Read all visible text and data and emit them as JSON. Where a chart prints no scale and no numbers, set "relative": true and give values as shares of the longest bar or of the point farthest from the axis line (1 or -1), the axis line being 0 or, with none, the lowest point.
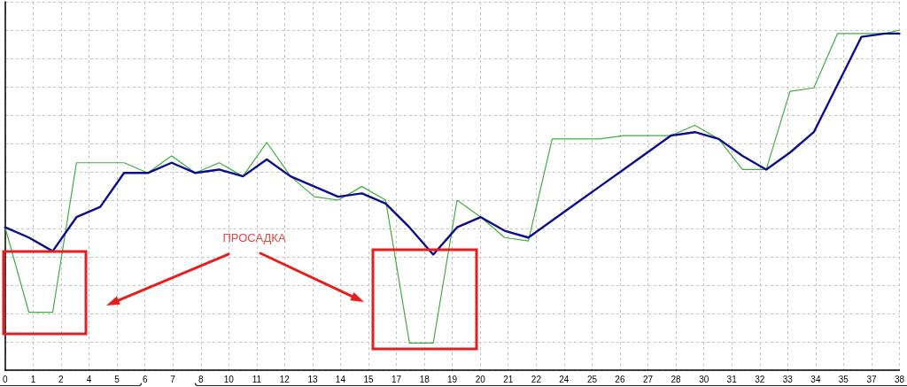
{
  "chart_data": {
    "type": "line",
    "relative": true,
    "x": [
      0.14,
      1.14,
      2.14,
      3.14,
      4.14,
      5.14,
      6.14,
      7.14,
      8.14,
      9.14,
      10.14,
      11.14,
      12.14,
      13.14,
      14.14,
      15.14,
      16.14,
      17.14,
      18.14,
      19.14,
      20.14,
      21.14,
      22.14,
      23.14,
      24.14,
      25.14,
      26.14,
      27.14,
      28.14,
      29.14,
      30.14,
      31.14,
      32.14,
      33.14,
      34.14,
      35.14,
      36.14,
      37.14,
      37.74
    ],
    "xlim": [
      0.14,
      37.74
    ],
    "xticks": [
      {
        "value": 0.14,
        "label": "0"
      },
      {
        "value": 1.32,
        "label": "1"
      },
      {
        "value": 2.49,
        "label": "2"
      },
      {
        "value": 3.67,
        "label": "4"
      },
      {
        "value": 4.84,
        "label": "5"
      },
      {
        "value": 6.02,
        "label": "6"
      },
      {
        "value": 7.19,
        "label": "7"
      },
      {
        "value": 8.37,
        "label": "8"
      },
      {
        "value": 9.54,
        "label": "10"
      },
      {
        "value": 10.72,
        "label": "11"
      },
      {
        "value": 11.89,
        "label": "12"
      },
      {
        "value": 13.07,
        "label": "13"
      },
      {
        "value": 14.24,
        "label": "14"
      },
      {
        "value": 15.42,
        "label": "15"
      },
      {
        "value": 16.59,
        "label": "17"
      },
      {
        "value": 17.77,
        "label": "18"
      },
      {
        "value": 18.94,
        "label": "19"
      },
      {
        "value": 20.12,
        "label": "20"
      },
      {
        "value": 21.29,
        "label": "21"
      },
      {
        "value": 22.47,
        "label": "22"
      },
      {
        "value": 23.64,
        "label": "24"
      },
      {
        "value": 24.82,
        "label": "25"
      },
      {
        "value": 25.99,
        "label": "26"
      },
      {
        "value": 27.17,
        "label": "27"
      },
      {
        "value": 28.34,
        "label": "28"
      },
      {
        "value": 29.52,
        "label": "30"
      },
      {
        "value": 30.69,
        "label": "31"
      },
      {
        "value": 31.87,
        "label": "32"
      },
      {
        "value": 33.04,
        "label": "33"
      },
      {
        "value": 34.22,
        "label": "34"
      },
      {
        "value": 35.39,
        "label": "35"
      },
      {
        "value": 36.57,
        "label": "37"
      },
      {
        "value": 37.74,
        "label": "38"
      }
    ],
    "series": [
      {
        "color": "#41ad41",
        "values": [
          0.42,
          0.17,
          0.17,
          0.61,
          0.61,
          0.61,
          0.58,
          0.63,
          0.58,
          0.61,
          0.57,
          0.67,
          0.57,
          0.51,
          0.5,
          0.54,
          0.5,
          0.08,
          0.08,
          0.5,
          0.45,
          0.39,
          0.38,
          0.68,
          0.68,
          0.68,
          0.69,
          0.69,
          0.69,
          0.72,
          0.68,
          0.59,
          0.59,
          0.82,
          0.83,
          0.99,
          0.99,
          0.99,
          1
        ]
      },
      {
        "color": "#0c0c8c",
        "values": [
          0.42,
          0.39,
          0.35,
          0.45,
          0.48,
          0.58,
          0.58,
          0.61,
          0.58,
          0.59,
          0.57,
          0.62,
          0.57,
          0.54,
          0.51,
          0.52,
          0.49,
          0.42,
          0.34,
          0.42,
          0.45,
          0.41,
          0.39,
          0.44,
          0.49,
          0.54,
          0.59,
          0.64,
          0.69,
          0.7,
          0.68,
          0.63,
          0.59,
          0.64,
          0.7,
          0.84,
          0.98,
          0.99,
          0.99
        ]
      }
    ],
    "grid": true,
    "marker": "none",
    "line_style": "solid",
    "annotations": [
      "ПРОСАДКА"
    ]
  }
}
